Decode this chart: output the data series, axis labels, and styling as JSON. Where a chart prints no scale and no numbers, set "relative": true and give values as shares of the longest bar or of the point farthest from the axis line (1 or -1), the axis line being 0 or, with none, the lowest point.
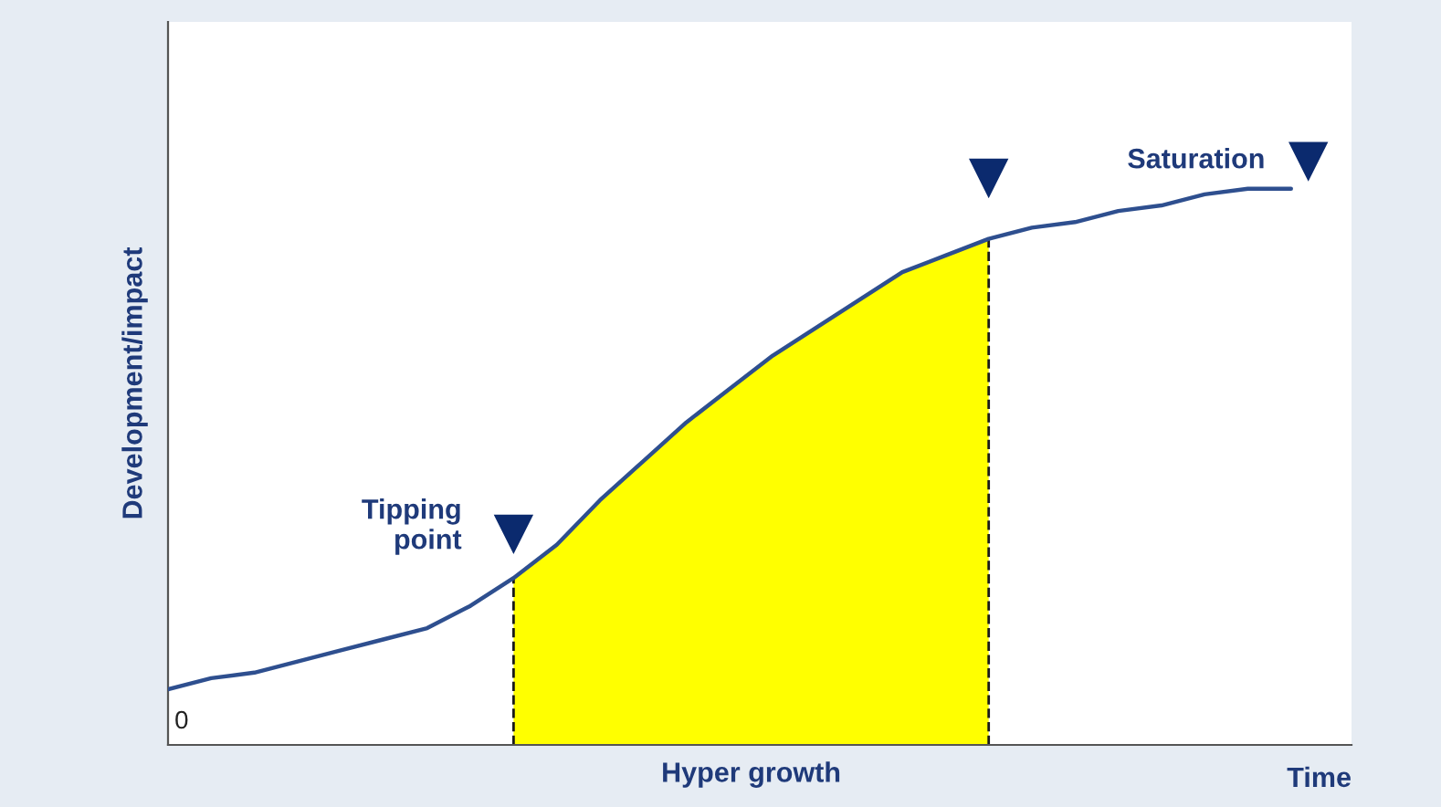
{
  "chart_data": {
    "type": "line",
    "relative": true,
    "ylabel": "Development/impact",
    "xlabel": "Time",
    "categories": [
      null,
      null,
      null,
      null,
      null,
      null,
      null,
      null,
      null,
      null,
      null,
      null,
      null,
      null,
      null,
      null,
      null,
      null,
      null,
      null,
      null,
      null,
      null,
      null,
      null,
      null,
      null
    ],
    "series": [
      {
        "color": "#2e4f8f",
        "values": [
          0.1,
          0.12,
          0.13,
          0.15,
          0.17,
          0.19,
          0.21,
          0.25,
          0.3,
          0.36,
          0.44,
          0.51,
          0.58,
          0.64,
          0.7,
          0.75,
          0.8,
          0.85,
          0.88,
          0.91,
          0.93,
          0.94,
          0.96,
          0.97,
          0.99,
          1.0,
          1.0
        ]
      },
      {
        "type": "area",
        "color": "#ffff00",
        "values": [
          null,
          null,
          null,
          null,
          null,
          null,
          null,
          null,
          0.3,
          0.36,
          0.44,
          0.51,
          0.58,
          0.64,
          0.7,
          0.75,
          0.8,
          0.85,
          0.88,
          0.91,
          null,
          null,
          null,
          null,
          null,
          null,
          null
        ]
      }
    ],
    "annotations": [
      "Tipping\npoint",
      "Saturation",
      "0",
      "Hyper growth"
    ],
    "marker": "none",
    "line_style": "solid"
  }
}
